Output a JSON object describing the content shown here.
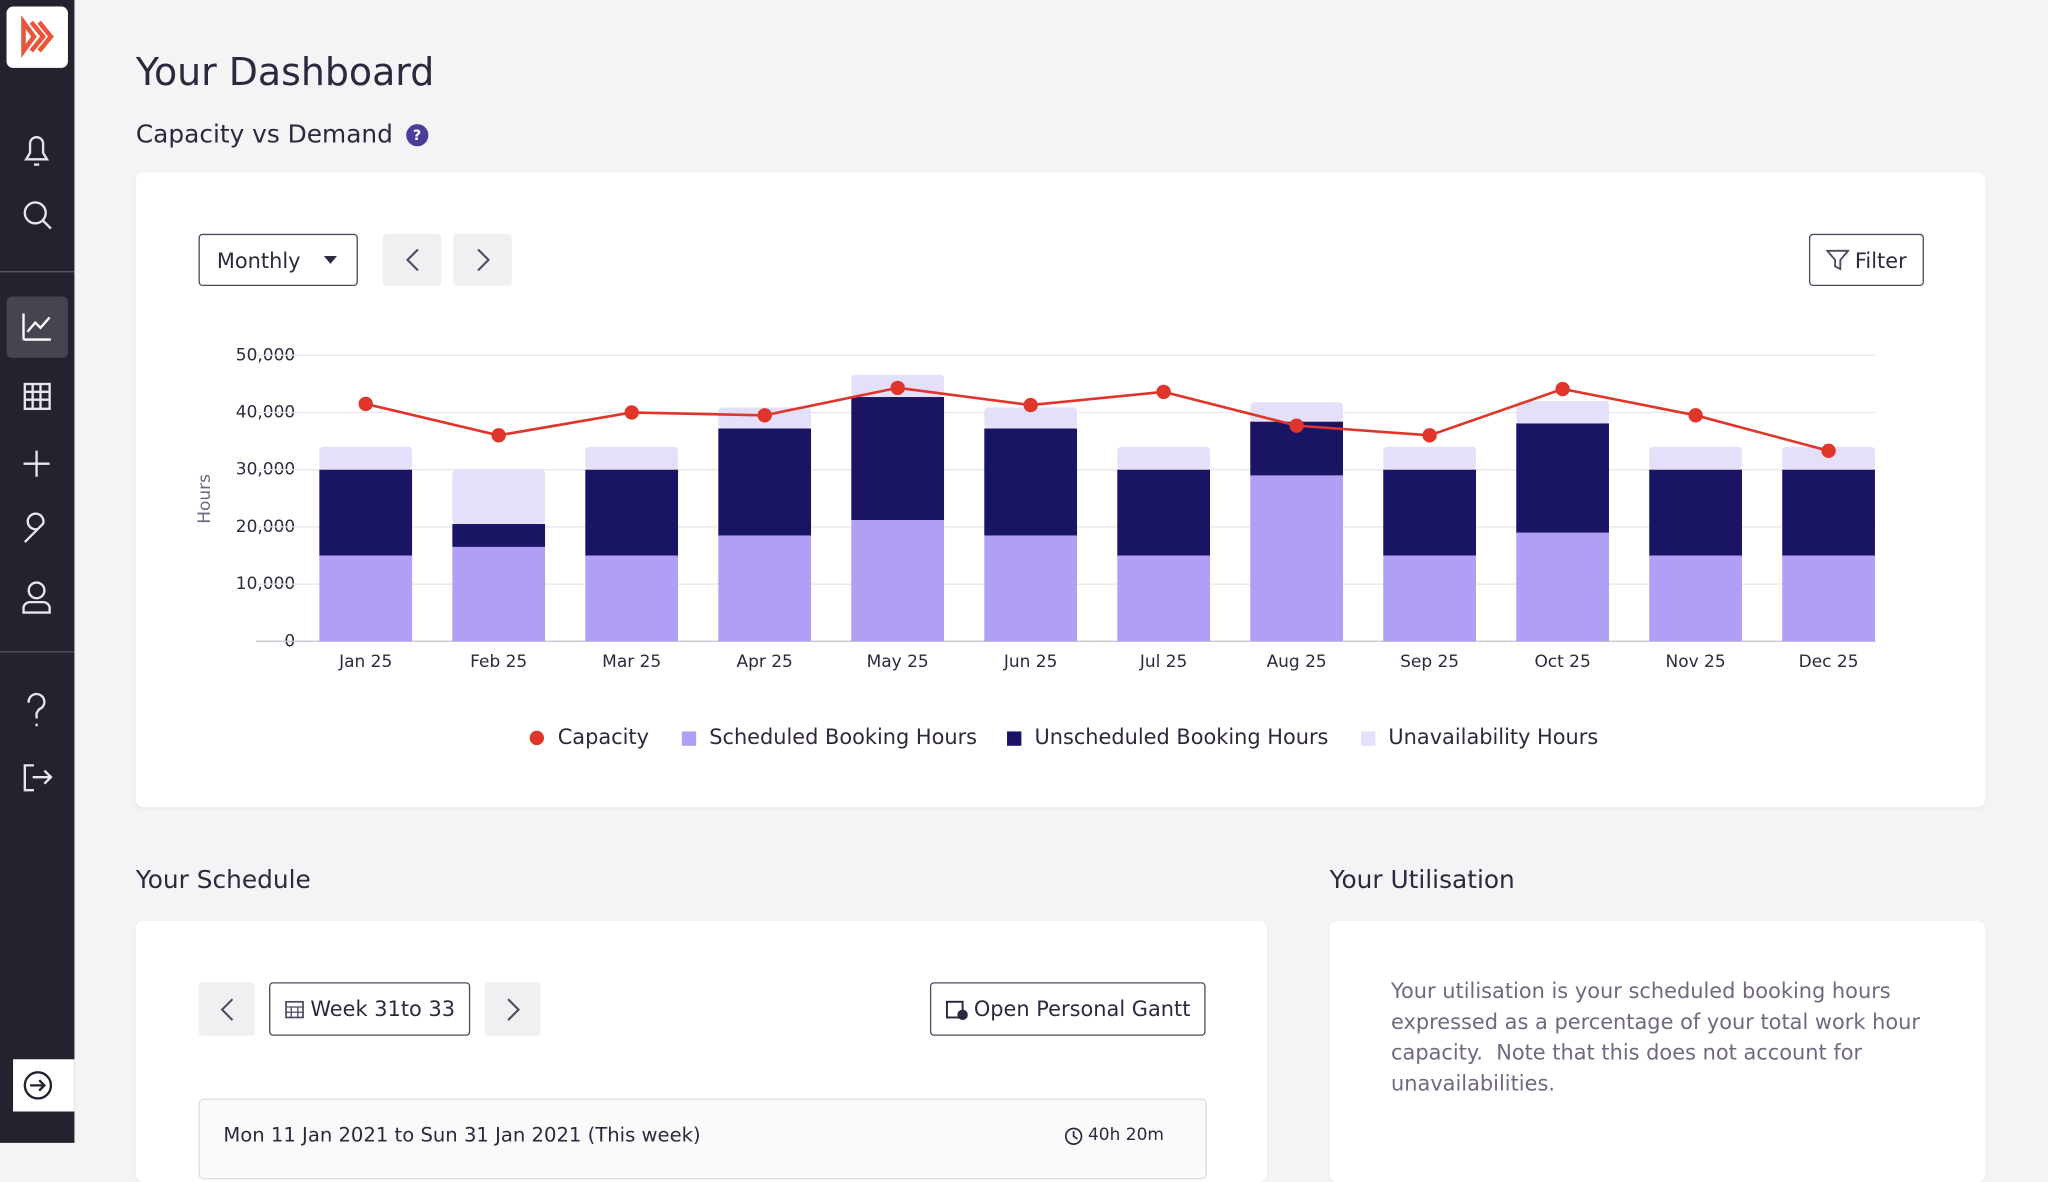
{
  "page": {
    "title": "Your Dashboard",
    "subtitle": "Capacity vs Demand",
    "help": "?",
    "period": "Monthly",
    "filter": "Filter",
    "schedule": {
      "heading": "Your Schedule",
      "week": "Week 31to 33",
      "gantt": "Open Personal Gantt",
      "row": "Mon 11 Jan 2021 to Sun 31 Jan 2021 (This week)",
      "duration": "40h 20m"
    },
    "utilisation": {
      "heading": "Your Utilisation",
      "text": "Your utilisation is your scheduled booking hours expressed as a percentage of your total work hour capacity.  Note that this does not account for unavailabilities."
    }
  },
  "chart_data": {
    "type": "stacked-bar-line",
    "y_label": "Hours",
    "categories": [
      "Jan 25",
      "Feb 25",
      "Mar 25",
      "Apr 25",
      "May 25",
      "Jun 25",
      "Jul 25",
      "Aug 25",
      "Sep 25",
      "Oct 25",
      "Nov 25",
      "Dec 25"
    ],
    "ylim": [
      0,
      50000
    ],
    "yticks": [
      0,
      {
        "value": 10000,
        "label": "10,000"
      },
      {
        "value": 20000,
        "label": "20,000"
      },
      {
        "value": 30000,
        "label": "30,000"
      },
      {
        "value": 40000,
        "label": "40,000"
      },
      {
        "value": 50000,
        "label": "50,000"
      }
    ],
    "grid": true,
    "line": {
      "name": "Capacity",
      "color": "#e0352b",
      "values": [
        41500,
        36000,
        40000,
        39500,
        44300,
        41300,
        43600,
        37700,
        36000,
        44100,
        39500,
        33300
      ]
    },
    "series": [
      {
        "name": "Scheduled Booking Hours",
        "color": "#b09ff5",
        "values": [
          15000,
          16500,
          15000,
          18500,
          21200,
          18500,
          15000,
          29000,
          15000,
          19000,
          15000,
          15000
        ]
      },
      {
        "name": "Unscheduled Booking Hours",
        "color": "#1a1464",
        "values": [
          15000,
          4000,
          15000,
          18700,
          21500,
          18700,
          15000,
          9400,
          15000,
          19100,
          15000,
          15000
        ]
      },
      {
        "name": "Unavailability Hours",
        "color": "#e5e0fa",
        "values": [
          4000,
          9500,
          4000,
          3700,
          3900,
          3700,
          4000,
          3400,
          4000,
          3900,
          4000,
          4000
        ]
      }
    ]
  }
}
